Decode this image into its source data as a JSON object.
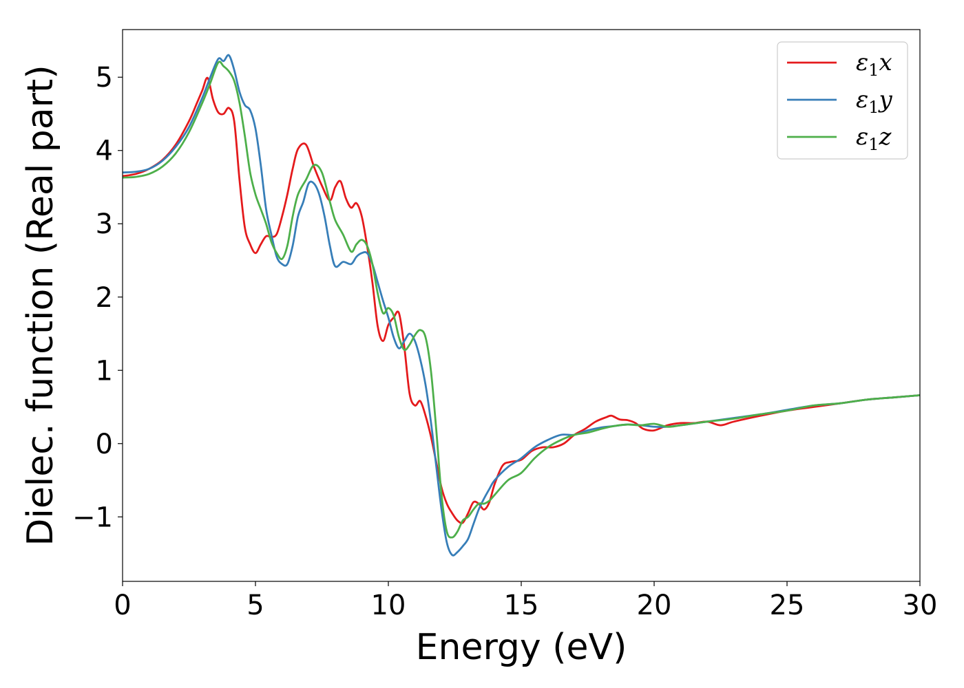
{
  "chart_data": {
    "type": "line",
    "title": "",
    "xlabel": "Energy (eV)",
    "ylabel": "Dielec. function (Real part)",
    "xlim": [
      0,
      30
    ],
    "ylim": [
      -1.88,
      5.65
    ],
    "xticks": [
      0,
      5,
      10,
      15,
      20,
      25,
      30
    ],
    "xtick_labels": [
      "0",
      "5",
      "10",
      "15",
      "20",
      "25",
      "30"
    ],
    "yticks": [
      -1,
      0,
      1,
      2,
      3,
      4,
      5
    ],
    "ytick_labels": [
      "−1",
      "0",
      "1",
      "2",
      "3",
      "4",
      "5"
    ],
    "grid": false,
    "legend": {
      "position": "top-right"
    },
    "series": [
      {
        "name": "ε",
        "name_sub": "1",
        "name_suffix": "x",
        "color": "#e41a1c",
        "x": [
          0,
          0.5,
          1,
          1.5,
          2,
          2.5,
          2.8,
          3.0,
          3.2,
          3.4,
          3.6,
          3.8,
          4.0,
          4.2,
          4.4,
          4.6,
          4.8,
          5.0,
          5.2,
          5.4,
          5.6,
          5.8,
          6.0,
          6.2,
          6.4,
          6.6,
          6.9,
          7.2,
          7.5,
          7.8,
          8.0,
          8.2,
          8.4,
          8.6,
          8.8,
          9.0,
          9.2,
          9.4,
          9.6,
          9.8,
          10.0,
          10.2,
          10.4,
          10.6,
          10.8,
          11.0,
          11.2,
          11.4,
          11.6,
          11.8,
          12.0,
          12.2,
          12.4,
          12.6,
          12.8,
          13.0,
          13.2,
          13.4,
          13.6,
          13.8,
          14.0,
          14.3,
          14.6,
          15.0,
          15.4,
          15.8,
          16.2,
          16.6,
          17.0,
          17.4,
          17.8,
          18.2,
          18.4,
          18.7,
          19.0,
          19.3,
          19.6,
          20.0,
          20.5,
          21.0,
          21.5,
          22.0,
          22.5,
          23.0,
          24.0,
          25.0,
          26.0,
          27.0,
          28.0,
          29.0,
          30.0
        ],
        "y": [
          3.65,
          3.68,
          3.75,
          3.87,
          4.08,
          4.4,
          4.65,
          4.82,
          4.99,
          4.7,
          4.52,
          4.5,
          4.58,
          4.4,
          3.6,
          2.95,
          2.72,
          2.6,
          2.72,
          2.83,
          2.82,
          2.86,
          3.1,
          3.4,
          3.75,
          4.02,
          4.08,
          3.78,
          3.52,
          3.32,
          3.5,
          3.58,
          3.35,
          3.22,
          3.28,
          3.1,
          2.7,
          2.2,
          1.6,
          1.4,
          1.62,
          1.72,
          1.78,
          1.32,
          0.68,
          0.52,
          0.58,
          0.38,
          0.1,
          -0.25,
          -0.6,
          -0.82,
          -0.95,
          -1.05,
          -1.08,
          -0.95,
          -0.8,
          -0.82,
          -0.9,
          -0.8,
          -0.55,
          -0.3,
          -0.25,
          -0.22,
          -0.1,
          -0.05,
          -0.05,
          0.0,
          0.12,
          0.2,
          0.3,
          0.36,
          0.38,
          0.33,
          0.32,
          0.28,
          0.2,
          0.18,
          0.25,
          0.28,
          0.28,
          0.3,
          0.25,
          0.3,
          0.38,
          0.45,
          0.5,
          0.55,
          0.6,
          0.63,
          0.66
        ]
      },
      {
        "name": "ε",
        "name_sub": "1",
        "name_suffix": "y",
        "color": "#377eb8",
        "x": [
          0,
          0.5,
          1,
          1.5,
          2,
          2.5,
          3.0,
          3.3,
          3.6,
          3.8,
          4.0,
          4.2,
          4.4,
          4.6,
          4.8,
          5.0,
          5.2,
          5.4,
          5.6,
          5.8,
          6.0,
          6.2,
          6.4,
          6.6,
          6.8,
          7.0,
          7.2,
          7.4,
          7.6,
          7.8,
          8.0,
          8.3,
          8.6,
          8.8,
          9.0,
          9.2,
          9.4,
          9.6,
          9.8,
          10.0,
          10.2,
          10.4,
          10.6,
          10.8,
          11.0,
          11.2,
          11.4,
          11.6,
          11.8,
          12.0,
          12.2,
          12.4,
          12.6,
          12.8,
          13.0,
          13.2,
          13.4,
          13.6,
          13.8,
          14.0,
          14.5,
          15.0,
          15.5,
          16.0,
          16.5,
          17.0,
          17.5,
          18.0,
          18.5,
          19.0,
          19.5,
          20.0,
          20.5,
          21.0,
          22.0,
          23.0,
          24.0,
          25.0,
          26.0,
          27.0,
          28.0,
          29.0,
          30.0
        ],
        "y": [
          3.7,
          3.71,
          3.75,
          3.86,
          4.05,
          4.32,
          4.72,
          5.0,
          5.25,
          5.22,
          5.3,
          5.1,
          4.8,
          4.62,
          4.55,
          4.3,
          3.8,
          3.2,
          2.85,
          2.55,
          2.45,
          2.45,
          2.7,
          3.1,
          3.3,
          3.55,
          3.55,
          3.4,
          3.1,
          2.7,
          2.42,
          2.48,
          2.45,
          2.55,
          2.6,
          2.6,
          2.45,
          2.2,
          1.95,
          1.72,
          1.45,
          1.3,
          1.4,
          1.5,
          1.4,
          1.15,
          0.8,
          0.3,
          -0.3,
          -0.9,
          -1.35,
          -1.52,
          -1.48,
          -1.4,
          -1.3,
          -1.1,
          -0.9,
          -0.75,
          -0.62,
          -0.5,
          -0.32,
          -0.2,
          -0.05,
          0.05,
          0.12,
          0.12,
          0.18,
          0.22,
          0.24,
          0.26,
          0.25,
          0.23,
          0.23,
          0.25,
          0.3,
          0.35,
          0.4,
          0.46,
          0.52,
          0.55,
          0.6,
          0.63,
          0.66
        ]
      },
      {
        "name": "ε",
        "name_sub": "1",
        "name_suffix": "z",
        "color": "#4daf4a",
        "x": [
          0,
          0.5,
          1,
          1.5,
          2,
          2.5,
          3.0,
          3.3,
          3.6,
          3.8,
          4.0,
          4.2,
          4.4,
          4.6,
          4.8,
          5.0,
          5.2,
          5.4,
          5.6,
          5.8,
          6.0,
          6.2,
          6.4,
          6.6,
          6.9,
          7.2,
          7.5,
          7.8,
          8.0,
          8.3,
          8.6,
          8.8,
          9.0,
          9.2,
          9.4,
          9.6,
          9.8,
          10.0,
          10.2,
          10.4,
          10.6,
          10.8,
          11.0,
          11.2,
          11.4,
          11.6,
          11.8,
          12.0,
          12.2,
          12.4,
          12.6,
          12.8,
          13.0,
          13.2,
          13.4,
          13.6,
          13.8,
          14.0,
          14.5,
          15.0,
          15.5,
          16.0,
          16.5,
          17.0,
          17.5,
          18.0,
          18.5,
          19.0,
          19.5,
          20.0,
          20.5,
          21.0,
          22.0,
          23.0,
          24.0,
          25.0,
          26.0,
          27.0,
          28.0,
          29.0,
          30.0
        ],
        "y": [
          3.63,
          3.64,
          3.68,
          3.78,
          3.96,
          4.25,
          4.65,
          4.92,
          5.2,
          5.15,
          5.08,
          4.95,
          4.65,
          4.2,
          3.7,
          3.4,
          3.2,
          3.0,
          2.75,
          2.6,
          2.52,
          2.7,
          3.1,
          3.4,
          3.6,
          3.8,
          3.7,
          3.3,
          3.05,
          2.85,
          2.62,
          2.72,
          2.78,
          2.7,
          2.45,
          2.05,
          1.78,
          1.85,
          1.75,
          1.45,
          1.28,
          1.35,
          1.48,
          1.55,
          1.45,
          1.0,
          0.2,
          -0.7,
          -1.2,
          -1.28,
          -1.2,
          -1.05,
          -1.0,
          -0.9,
          -0.82,
          -0.82,
          -0.78,
          -0.7,
          -0.5,
          -0.4,
          -0.2,
          -0.05,
          0.05,
          0.12,
          0.15,
          0.2,
          0.24,
          0.26,
          0.25,
          0.27,
          0.23,
          0.25,
          0.3,
          0.34,
          0.4,
          0.45,
          0.52,
          0.55,
          0.6,
          0.63,
          0.66
        ]
      }
    ]
  }
}
